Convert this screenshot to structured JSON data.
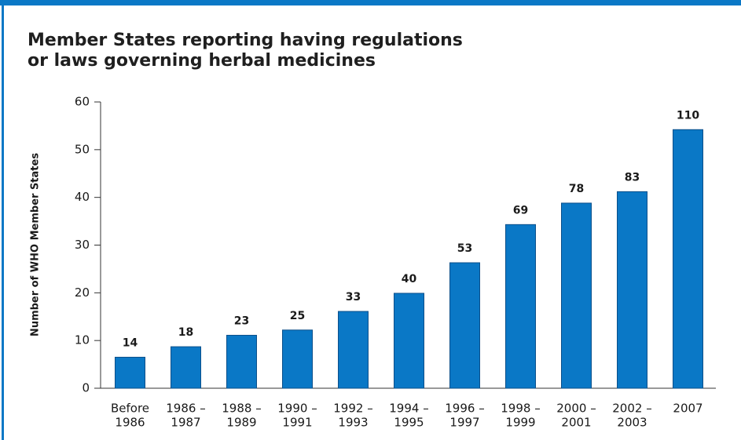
{
  "chart_data": {
    "type": "bar",
    "title": [
      "Member States reporting having regulations",
      "or laws governing herbal medicines"
    ],
    "y_label": "Number of WHO Member States",
    "categories": [
      [
        "Before",
        "1986"
      ],
      [
        "1986 –",
        "1987"
      ],
      [
        "1988 –",
        "1989"
      ],
      [
        "1990 –",
        "1991"
      ],
      [
        "1992 –",
        "1993"
      ],
      [
        "1994 –",
        "1995"
      ],
      [
        "1996 –",
        "1997"
      ],
      [
        "1998 –",
        "1999"
      ],
      [
        "2000 –",
        "2001"
      ],
      [
        "2002 –",
        "2003"
      ],
      [
        "2007"
      ]
    ],
    "values": [
      6.5,
      8.7,
      11.1,
      12.2,
      16.1,
      19.9,
      26.3,
      34.3,
      38.8,
      41.2,
      54.2
    ],
    "value_labels": [
      "14",
      "18",
      "23",
      "25",
      "33",
      "40",
      "53",
      "69",
      "78",
      "83",
      "110"
    ],
    "color": "#0a78c6",
    "ylim": [
      0,
      60
    ],
    "yticks": [
      0,
      10,
      20,
      30,
      40,
      50,
      60
    ],
    "grid": false
  }
}
